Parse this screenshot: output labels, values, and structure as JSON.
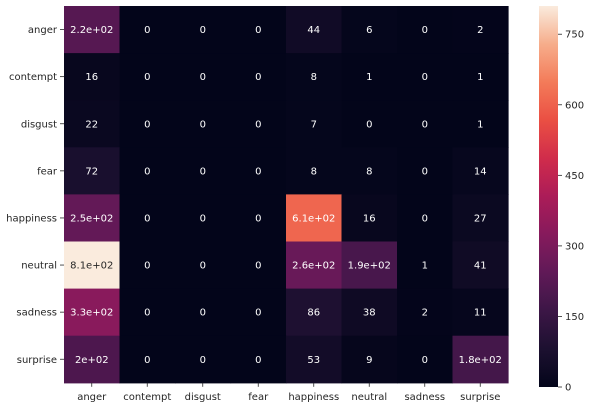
{
  "chart_data": {
    "type": "heatmap",
    "title": "",
    "xlabel": "",
    "ylabel": "",
    "x_categories": [
      "anger",
      "contempt",
      "disgust",
      "fear",
      "happiness",
      "neutral",
      "sadness",
      "surprise"
    ],
    "y_categories": [
      "anger",
      "contempt",
      "disgust",
      "fear",
      "happiness",
      "neutral",
      "sadness",
      "surprise"
    ],
    "values": [
      [
        220,
        0,
        0,
        0,
        44,
        6,
        0,
        2
      ],
      [
        16,
        0,
        0,
        0,
        8,
        1,
        0,
        1
      ],
      [
        22,
        0,
        0,
        0,
        7,
        0,
        0,
        1
      ],
      [
        72,
        0,
        0,
        0,
        8,
        8,
        0,
        14
      ],
      [
        250,
        0,
        0,
        0,
        610,
        16,
        0,
        27
      ],
      [
        810,
        0,
        0,
        0,
        260,
        190,
        1,
        41
      ],
      [
        330,
        0,
        0,
        0,
        86,
        38,
        2,
        11
      ],
      [
        200,
        0,
        0,
        0,
        53,
        9,
        0,
        180
      ]
    ],
    "annotations": [
      [
        "2.2e+02",
        "0",
        "0",
        "0",
        "44",
        "6",
        "0",
        "2"
      ],
      [
        "16",
        "0",
        "0",
        "0",
        "8",
        "1",
        "0",
        "1"
      ],
      [
        "22",
        "0",
        "0",
        "0",
        "7",
        "0",
        "0",
        "1"
      ],
      [
        "72",
        "0",
        "0",
        "0",
        "8",
        "8",
        "0",
        "14"
      ],
      [
        "2.5e+02",
        "0",
        "0",
        "0",
        "6.1e+02",
        "16",
        "0",
        "27"
      ],
      [
        "8.1e+02",
        "0",
        "0",
        "0",
        "2.6e+02",
        "1.9e+02",
        "1",
        "41"
      ],
      [
        "3.3e+02",
        "0",
        "0",
        "0",
        "86",
        "38",
        "2",
        "11"
      ],
      [
        "2e+02",
        "0",
        "0",
        "0",
        "53",
        "9",
        "0",
        "1.8e+02"
      ]
    ],
    "colorbar": {
      "colormap": "rocket",
      "min": 0,
      "max": 810,
      "ticks": [
        0,
        150,
        300,
        450,
        600,
        750
      ],
      "tick_labels": [
        "0",
        "150",
        "300",
        "450",
        "600",
        "750"
      ]
    },
    "grid": false,
    "legend": "colorbar-right"
  }
}
